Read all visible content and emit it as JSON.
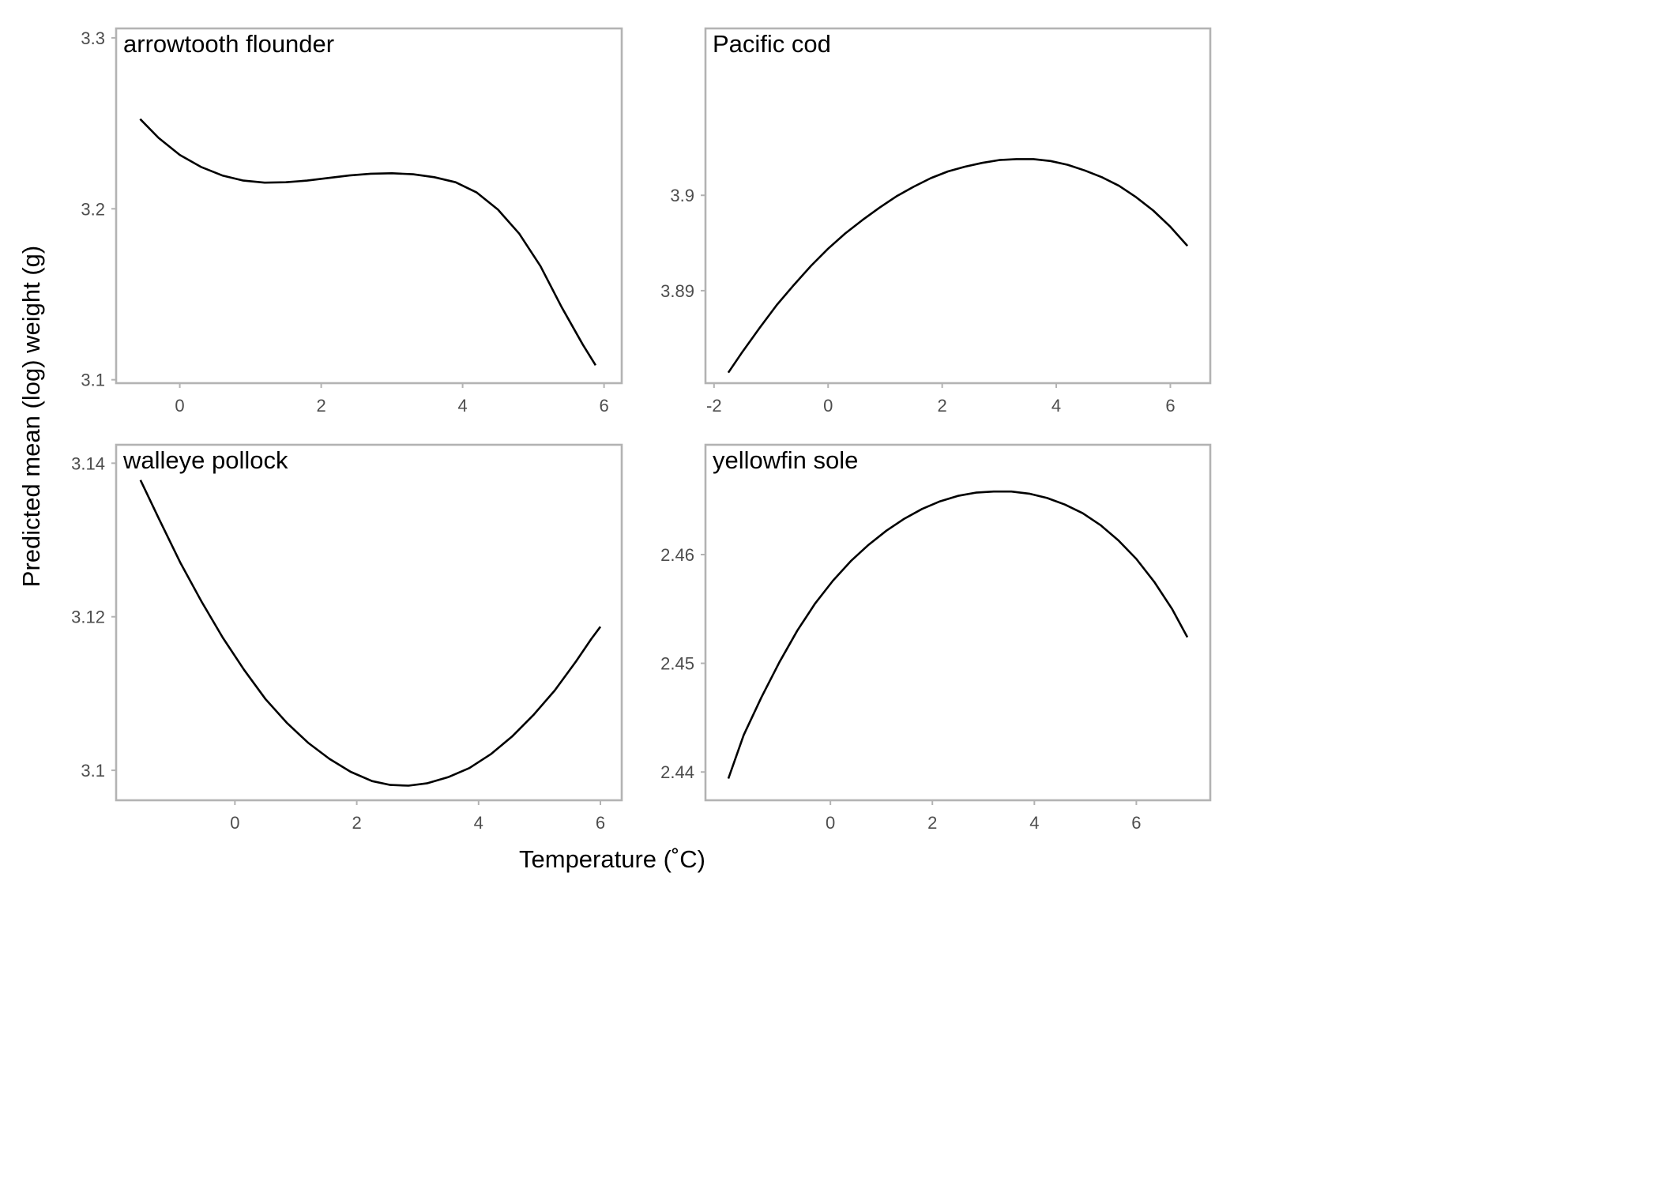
{
  "figure": {
    "xlabel": "Temperature (˚C)",
    "ylabel": "Predicted mean (log) weight (g)"
  },
  "chart_data": [
    {
      "type": "line",
      "title": "arrowtooth flounder",
      "xlim": [
        -0.9,
        6.25
      ],
      "ylim": [
        3.098,
        3.3055
      ],
      "xticks": [
        0,
        2,
        4,
        6
      ],
      "xtick_labels": [
        "0",
        "2",
        "4",
        "6"
      ],
      "yticks": [
        3.1,
        3.2,
        3.3
      ],
      "ytick_labels": [
        "3.1",
        "3.2",
        "3.3"
      ],
      "series": [
        {
          "x": [
            -0.56,
            -0.3,
            0.0,
            0.3,
            0.6,
            0.9,
            1.2,
            1.5,
            1.8,
            2.1,
            2.4,
            2.7,
            3.0,
            3.3,
            3.6,
            3.9,
            4.2,
            4.5,
            4.8,
            5.1,
            5.4,
            5.7,
            5.88
          ],
          "y": [
            3.2525,
            3.2415,
            3.2315,
            3.2245,
            3.2195,
            3.2165,
            3.2153,
            3.2155,
            3.2165,
            3.218,
            3.2195,
            3.2205,
            3.2208,
            3.2202,
            3.2185,
            3.2155,
            3.2095,
            3.1995,
            3.1855,
            3.1665,
            3.1425,
            3.1205,
            3.1085
          ]
        }
      ]
    },
    {
      "type": "line",
      "title": "Pacific cod",
      "xlim": [
        -2.15,
        6.7
      ],
      "ylim": [
        3.8803,
        3.9175
      ],
      "xticks": [
        -2,
        0,
        2,
        4,
        6
      ],
      "xtick_labels": [
        "-2",
        "0",
        "2",
        "4",
        "6"
      ],
      "yticks": [
        3.89,
        3.9
      ],
      "ytick_labels": [
        "3.89",
        "3.9"
      ],
      "series": [
        {
          "x": [
            -1.75,
            -1.5,
            -1.2,
            -0.9,
            -0.6,
            -0.3,
            0.0,
            0.3,
            0.6,
            0.9,
            1.2,
            1.5,
            1.8,
            2.1,
            2.4,
            2.7,
            3.0,
            3.3,
            3.6,
            3.9,
            4.2,
            4.5,
            4.8,
            5.1,
            5.4,
            5.7,
            6.0,
            6.3
          ],
          "y": [
            3.8814,
            3.8836,
            3.8861,
            3.8885,
            3.8906,
            3.8926,
            3.8944,
            3.896,
            3.8974,
            3.8987,
            3.8999,
            3.9009,
            3.9018,
            3.9025,
            3.903,
            3.9034,
            3.9037,
            3.9038,
            3.9038,
            3.9036,
            3.9032,
            3.9026,
            3.9019,
            3.901,
            3.8998,
            3.8984,
            3.8967,
            3.8947
          ]
        }
      ]
    },
    {
      "type": "line",
      "title": "walleye pollock",
      "xlim": [
        -1.95,
        6.35
      ],
      "ylim": [
        3.0961,
        3.1424
      ],
      "xticks": [
        0,
        2,
        4,
        6
      ],
      "xtick_labels": [
        "0",
        "2",
        "4",
        "6"
      ],
      "yticks": [
        3.1,
        3.12,
        3.14
      ],
      "ytick_labels": [
        "3.1",
        "3.12",
        "3.14"
      ],
      "series": [
        {
          "x": [
            -1.55,
            -1.25,
            -0.9,
            -0.55,
            -0.2,
            0.15,
            0.5,
            0.85,
            1.2,
            1.55,
            1.9,
            2.25,
            2.55,
            2.85,
            3.15,
            3.5,
            3.85,
            4.2,
            4.55,
            4.9,
            5.25,
            5.6,
            5.85,
            6.0
          ],
          "y": [
            3.1378,
            3.1328,
            3.1271,
            3.122,
            3.1173,
            3.1131,
            3.1093,
            3.1062,
            3.1036,
            3.1015,
            3.0998,
            3.0986,
            3.0981,
            3.098,
            3.0983,
            3.0991,
            3.1003,
            3.1021,
            3.1044,
            3.1072,
            3.1104,
            3.1142,
            3.1171,
            3.1187
          ]
        }
      ]
    },
    {
      "type": "line",
      "title": "yellowfin sole",
      "xlim": [
        -2.45,
        7.45
      ],
      "ylim": [
        2.4374,
        2.4701
      ],
      "xticks": [
        0,
        2,
        4,
        6
      ],
      "xtick_labels": [
        "0",
        "2",
        "4",
        "6"
      ],
      "yticks": [
        2.44,
        2.45,
        2.46
      ],
      "ytick_labels": [
        "2.44",
        "2.45",
        "2.46"
      ],
      "series": [
        {
          "x": [
            -2.0,
            -1.7,
            -1.35,
            -1.0,
            -0.65,
            -0.3,
            0.05,
            0.4,
            0.75,
            1.1,
            1.45,
            1.8,
            2.15,
            2.5,
            2.85,
            3.2,
            3.55,
            3.9,
            4.25,
            4.6,
            4.95,
            5.3,
            5.65,
            6.0,
            6.35,
            6.7,
            7.0
          ],
          "y": [
            2.4394,
            2.4434,
            2.4469,
            2.4501,
            2.453,
            2.4555,
            2.4576,
            2.4594,
            2.4609,
            2.4622,
            2.4633,
            2.4642,
            2.4649,
            2.4654,
            2.4657,
            2.4658,
            2.4658,
            2.4656,
            2.4652,
            2.4646,
            2.4638,
            2.4627,
            2.4613,
            2.4596,
            2.4575,
            2.455,
            2.4524
          ]
        }
      ]
    }
  ]
}
